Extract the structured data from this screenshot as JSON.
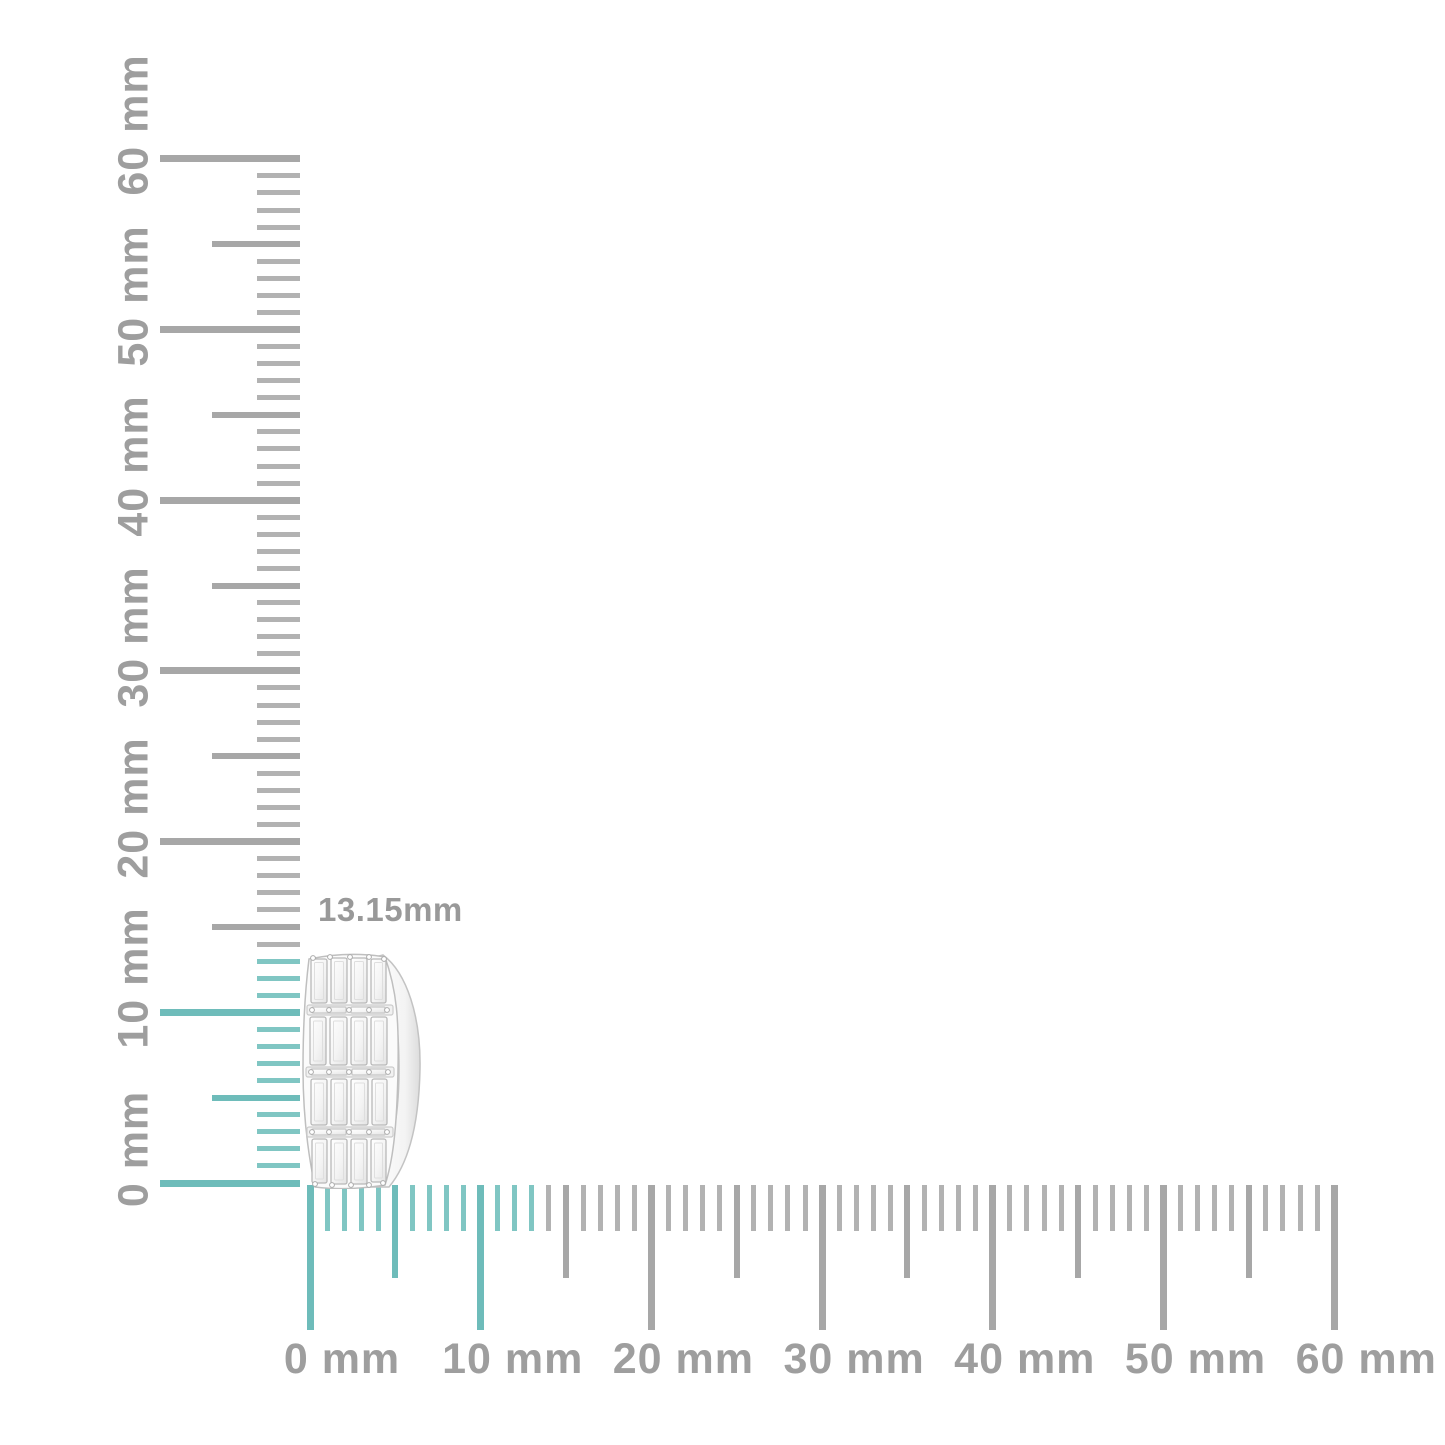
{
  "product": {
    "description": "white-gold huggie earring with channel-set baguette diamonds",
    "dimension_label": "13.15mm"
  },
  "rulers": {
    "unit": "mm",
    "min_mm": 0,
    "max_mm": 60,
    "minor_step_mm": 1,
    "medium_step_mm": 5,
    "major_step_mm": 10,
    "highlight_until_mm": 13,
    "vertical_labels": [
      "0 mm",
      "10 mm",
      "20 mm",
      "30 mm",
      "40 mm",
      "50 mm",
      "60 mm"
    ],
    "horizontal_labels": [
      "0 mm",
      "10 mm",
      "20 mm",
      "30 mm",
      "40 mm",
      "50 mm",
      "60 mm"
    ],
    "colors": {
      "gray_major": "#a7a7a7",
      "gray_minor": "#b2b2b2",
      "teal_major": "#6ebcba",
      "teal_minor": "#80c6c3",
      "label": "#9e9e9e",
      "dimension_label": "#999999"
    }
  }
}
